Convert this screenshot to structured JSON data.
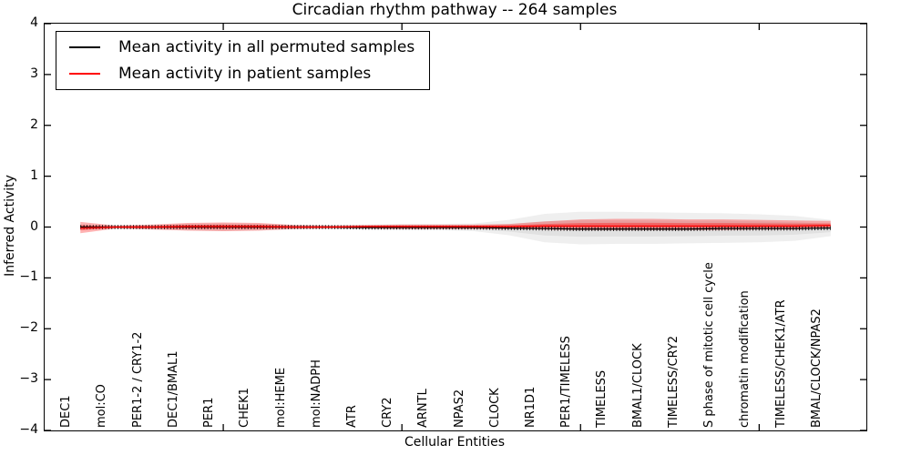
{
  "figure": {
    "title": "Circadian rhythm pathway -- 264 samples",
    "xlabel": "Cellular Entities",
    "ylabel": "Inferred Activity"
  },
  "legend": {
    "items": [
      {
        "label": "Mean activity in all permuted samples",
        "color": "#000000"
      },
      {
        "label": "Mean activity in patient samples",
        "color": "#ff0000"
      }
    ]
  },
  "y_axis": {
    "tick_values": [
      4,
      3,
      2,
      1,
      0,
      -1,
      -2,
      -3,
      -4
    ],
    "tick_labels": [
      "4",
      "3",
      "2",
      "1",
      "0",
      "−1",
      "−2",
      "−3",
      "−4"
    ]
  },
  "chart_data": {
    "type": "line",
    "title": "Circadian rhythm pathway -- 264 samples",
    "xlabel": "Cellular Entities",
    "ylabel": "Inferred Activity",
    "ylim": [
      -4,
      4
    ],
    "xlim": [
      0,
      23
    ],
    "x_major_ticks": [
      5,
      10,
      15,
      20
    ],
    "grid": false,
    "legend_position": "upper left",
    "categories": [
      "DEC1",
      "mol:CO",
      "PER1-2 / CRY1-2",
      "DEC1/BMAL1",
      "PER1",
      "CHEK1",
      "mol:HEME",
      "mol:NADPH",
      "ATR",
      "CRY2",
      "ARNTL",
      "NPAS2",
      "CLOCK",
      "NR1D1",
      "PER1/TIMELESS",
      "TIMELESS",
      "BMAL1/CLOCK",
      "TIMELESS/CRY2",
      "S phase of mitotic cell cycle",
      "chromatin modification",
      "TIMELESS/CHEK1/ATR",
      "BMAL/CLOCK/NPAS2"
    ],
    "x": [
      1,
      2,
      3,
      4,
      5,
      6,
      7,
      8,
      9,
      10,
      11,
      12,
      13,
      14,
      15,
      16,
      17,
      18,
      19,
      20,
      21,
      22
    ],
    "series": [
      {
        "name": "Mean activity in all permuted samples",
        "color": "#000000",
        "values": [
          0.0,
          0.0,
          0.0,
          0.0,
          0.0,
          0.0,
          0.0,
          0.0,
          -0.01,
          -0.01,
          -0.01,
          -0.01,
          -0.02,
          -0.03,
          -0.04,
          -0.04,
          -0.04,
          -0.04,
          -0.03,
          -0.03,
          -0.03,
          -0.02
        ]
      },
      {
        "name": "Mean activity in patient samples",
        "color": "#ff0000",
        "values": [
          -0.02,
          0.0,
          0.0,
          0.01,
          0.01,
          0.01,
          0.0,
          0.0,
          0.01,
          0.01,
          0.01,
          0.01,
          0.01,
          0.02,
          0.02,
          0.02,
          0.02,
          0.02,
          0.02,
          0.02,
          0.02,
          0.03
        ]
      }
    ],
    "bands": [
      {
        "name": "permuted samples activity range",
        "color": "#999999",
        "upper": [
          0.05,
          0.03,
          0.03,
          0.07,
          0.08,
          0.07,
          0.04,
          0.03,
          0.05,
          0.06,
          0.06,
          0.07,
          0.14,
          0.26,
          0.3,
          0.3,
          0.29,
          0.28,
          0.27,
          0.25,
          0.22,
          0.14
        ],
        "lower": [
          -0.05,
          -0.03,
          -0.04,
          -0.07,
          -0.08,
          -0.07,
          -0.04,
          -0.03,
          -0.05,
          -0.06,
          -0.06,
          -0.08,
          -0.16,
          -0.3,
          -0.34,
          -0.33,
          -0.33,
          -0.32,
          -0.31,
          -0.3,
          -0.27,
          -0.18
        ]
      },
      {
        "name": "patient samples activity range",
        "color": "#ff0000",
        "upper": [
          0.1,
          0.03,
          0.05,
          0.08,
          0.09,
          0.08,
          0.04,
          0.03,
          0.04,
          0.05,
          0.05,
          0.05,
          0.06,
          0.11,
          0.15,
          0.16,
          0.16,
          0.15,
          0.15,
          0.14,
          0.13,
          0.12
        ],
        "lower": [
          -0.12,
          -0.03,
          -0.05,
          -0.07,
          -0.08,
          -0.07,
          -0.04,
          -0.03,
          -0.03,
          -0.04,
          -0.04,
          -0.04,
          -0.04,
          -0.05,
          -0.06,
          -0.06,
          -0.06,
          -0.06,
          -0.06,
          -0.05,
          -0.05,
          -0.02
        ]
      }
    ]
  }
}
